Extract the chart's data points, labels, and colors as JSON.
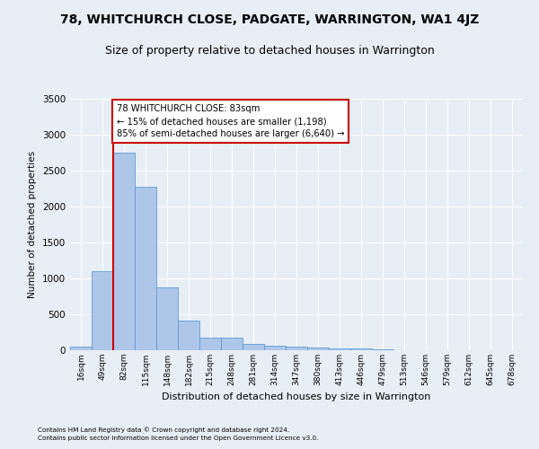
{
  "title1": "78, WHITCHURCH CLOSE, PADGATE, WARRINGTON, WA1 4JZ",
  "title2": "Size of property relative to detached houses in Warrington",
  "xlabel": "Distribution of detached houses by size in Warrington",
  "ylabel": "Number of detached properties",
  "categories": [
    "16sqm",
    "49sqm",
    "82sqm",
    "115sqm",
    "148sqm",
    "182sqm",
    "215sqm",
    "248sqm",
    "281sqm",
    "314sqm",
    "347sqm",
    "380sqm",
    "413sqm",
    "446sqm",
    "479sqm",
    "513sqm",
    "546sqm",
    "579sqm",
    "612sqm",
    "645sqm",
    "678sqm"
  ],
  "values": [
    52,
    1105,
    2745,
    2270,
    875,
    415,
    175,
    175,
    92,
    65,
    52,
    35,
    30,
    22,
    15,
    5,
    3,
    2,
    1,
    1,
    1
  ],
  "bar_color": "#aec6e8",
  "bar_edge_color": "#5b9bd5",
  "vline_color": "#cc0000",
  "annotation_text": "78 WHITCHURCH CLOSE: 83sqm\n← 15% of detached houses are smaller (1,198)\n85% of semi-detached houses are larger (6,640) →",
  "annotation_box_color": "#ffffff",
  "annotation_box_edge": "#cc0000",
  "ylim": [
    0,
    3500
  ],
  "yticks": [
    0,
    500,
    1000,
    1500,
    2000,
    2500,
    3000,
    3500
  ],
  "footer1": "Contains HM Land Registry data © Crown copyright and database right 2024.",
  "footer2": "Contains public sector information licensed under the Open Government Licence v3.0.",
  "bg_color": "#e8eef5",
  "plot_bg_color": "#e8eef5",
  "grid_color": "#ffffff",
  "title1_fontsize": 10,
  "title2_fontsize": 9
}
